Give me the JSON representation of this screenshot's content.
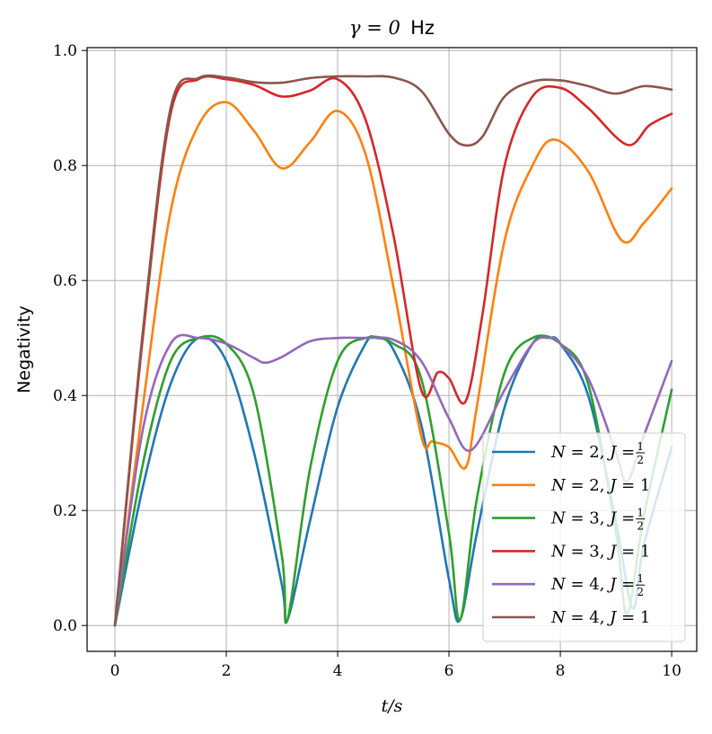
{
  "chart_data": {
    "type": "line",
    "title": {
      "math": "γ = 0",
      "unit": "Hz"
    },
    "xlabel": "t/s",
    "ylabel": "Negativity",
    "xlim": [
      -0.5,
      10.45
    ],
    "ylim": [
      -0.045,
      1.005
    ],
    "xticks": [
      0,
      2,
      4,
      6,
      8,
      10
    ],
    "xtick_labels": [
      "0",
      "2",
      "4",
      "6",
      "8",
      "10"
    ],
    "yticks": [
      0.0,
      0.2,
      0.4,
      0.6,
      0.8,
      1.0
    ],
    "ytick_labels": [
      "0.0",
      "0.2",
      "0.4",
      "0.6",
      "0.8",
      "1.0"
    ],
    "grid": true,
    "legend_position": "lower-right",
    "series": [
      {
        "name": "N = 2, J = 1/2",
        "legend": {
          "N": "2",
          "J": "1/2"
        },
        "color": "#1f77b4",
        "x": [
          0,
          0.5,
          1,
          1.5,
          2,
          2.5,
          3,
          3.1,
          3.5,
          4,
          4.5,
          4.7,
          5,
          5.5,
          6,
          6.2,
          6.5,
          7,
          7.5,
          7.8,
          8,
          8.5,
          9,
          9.3,
          9.5,
          10
        ],
        "y": [
          0,
          0.24,
          0.42,
          0.5,
          0.46,
          0.3,
          0.07,
          0.01,
          0.18,
          0.38,
          0.49,
          0.5,
          0.48,
          0.35,
          0.08,
          0.01,
          0.16,
          0.38,
          0.49,
          0.5,
          0.49,
          0.4,
          0.18,
          0.03,
          0.14,
          0.31
        ]
      },
      {
        "name": "N = 2, J = 1",
        "legend": {
          "N": "2",
          "J": "1"
        },
        "color": "#ff7f0e",
        "x": [
          0,
          0.5,
          1,
          1.5,
          2,
          2.5,
          3,
          3.5,
          4,
          4.5,
          5,
          5.5,
          5.7,
          6,
          6.3,
          6.5,
          7,
          7.5,
          7.9,
          8.5,
          9.1,
          9.5,
          10
        ],
        "y": [
          0,
          0.38,
          0.72,
          0.87,
          0.91,
          0.86,
          0.795,
          0.84,
          0.895,
          0.82,
          0.59,
          0.33,
          0.32,
          0.31,
          0.275,
          0.38,
          0.67,
          0.8,
          0.845,
          0.79,
          0.67,
          0.7,
          0.76
        ]
      },
      {
        "name": "N = 3, J = 1/2",
        "legend": {
          "N": "3",
          "J": "1/2"
        },
        "color": "#2ca02c",
        "x": [
          0,
          0.5,
          1,
          1.5,
          2,
          2.5,
          3,
          3.1,
          3.5,
          4,
          4.5,
          5,
          5.5,
          6,
          6.2,
          6.5,
          7,
          7.5,
          8,
          8.5,
          9,
          9.2,
          9.5,
          10
        ],
        "y": [
          0,
          0.28,
          0.46,
          0.5,
          0.49,
          0.4,
          0.12,
          0.01,
          0.27,
          0.46,
          0.5,
          0.49,
          0.43,
          0.16,
          0.01,
          0.22,
          0.44,
          0.5,
          0.49,
          0.42,
          0.16,
          0.02,
          0.19,
          0.41
        ]
      },
      {
        "name": "N = 3, J = 1",
        "legend": {
          "N": "3",
          "J": "1"
        },
        "color": "#d62728",
        "x": [
          0,
          0.5,
          1,
          1.5,
          2,
          2.5,
          3,
          3.5,
          4,
          4.5,
          5,
          5.5,
          5.8,
          6,
          6.3,
          6.6,
          7,
          7.5,
          8,
          8.5,
          9.2,
          9.6,
          10
        ],
        "y": [
          0,
          0.5,
          0.89,
          0.95,
          0.95,
          0.94,
          0.92,
          0.93,
          0.95,
          0.88,
          0.68,
          0.41,
          0.44,
          0.43,
          0.39,
          0.54,
          0.8,
          0.92,
          0.935,
          0.9,
          0.836,
          0.87,
          0.89
        ]
      },
      {
        "name": "N = 4, J = 1/2",
        "legend": {
          "N": "4",
          "J": "1/2"
        },
        "color": "#9467bd",
        "x": [
          0,
          0.5,
          1,
          1.5,
          2,
          2.5,
          2.7,
          3,
          3.5,
          4,
          4.5,
          5,
          5.5,
          6,
          6.4,
          7,
          7.5,
          7.8,
          8,
          8.5,
          9,
          9.2,
          9.5,
          10
        ],
        "y": [
          0,
          0.34,
          0.49,
          0.5,
          0.49,
          0.465,
          0.457,
          0.467,
          0.494,
          0.5,
          0.5,
          0.497,
          0.46,
          0.36,
          0.305,
          0.41,
          0.49,
          0.5,
          0.49,
          0.43,
          0.3,
          0.25,
          0.33,
          0.46
        ]
      },
      {
        "name": "N = 4, J = 1",
        "legend": {
          "N": "4",
          "J": "1"
        },
        "color": "#8c564b",
        "x": [
          0,
          0.5,
          1,
          1.5,
          2,
          2.5,
          3,
          3.5,
          4,
          4.5,
          5,
          5.5,
          6,
          6.3,
          6.6,
          7,
          7.5,
          8,
          8.5,
          9,
          9.5,
          10
        ],
        "y": [
          0,
          0.51,
          0.9,
          0.952,
          0.953,
          0.945,
          0.944,
          0.952,
          0.955,
          0.955,
          0.953,
          0.93,
          0.855,
          0.835,
          0.85,
          0.92,
          0.946,
          0.948,
          0.938,
          0.925,
          0.938,
          0.932
        ]
      }
    ]
  }
}
